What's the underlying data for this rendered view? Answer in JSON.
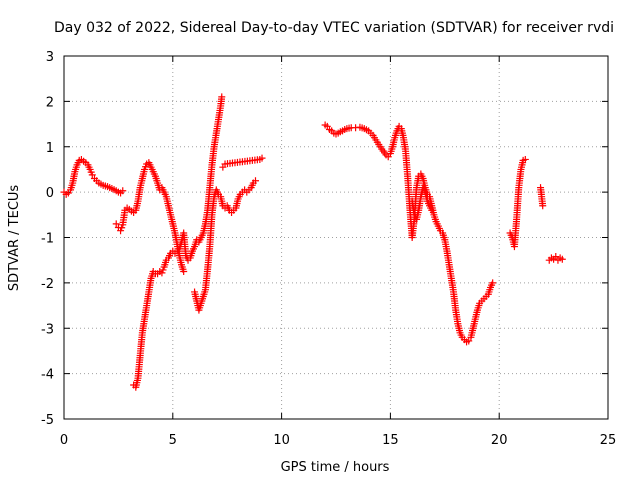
{
  "chart_data": {
    "type": "scatter",
    "title": "Day 032 of 2022, Sidereal Day-to-day VTEC variation (SDTVAR) for receiver rvdi",
    "xlabel": "GPS time / hours",
    "ylabel": "SDTVAR / TECUs",
    "xlim": [
      0,
      25
    ],
    "ylim": [
      -5,
      3
    ],
    "xticks": [
      "0",
      "5",
      "10",
      "15",
      "20",
      "25"
    ],
    "yticks": [
      "-5",
      "-4",
      "-3",
      "-2",
      "-1",
      "0",
      "1",
      "2",
      "3"
    ],
    "grid": true,
    "marker": "+",
    "color": "#ff0000",
    "series": [
      {
        "name": "SDTVAR",
        "segments": [
          [
            [
              0.0,
              0.0
            ],
            [
              0.1,
              -0.05
            ],
            [
              0.2,
              -0.02
            ],
            [
              0.3,
              0.05
            ],
            [
              0.4,
              0.2
            ],
            [
              0.5,
              0.45
            ],
            [
              0.6,
              0.6
            ],
            [
              0.7,
              0.7
            ],
            [
              0.8,
              0.72
            ],
            [
              0.9,
              0.68
            ],
            [
              1.0,
              0.65
            ],
            [
              1.1,
              0.6
            ],
            [
              1.2,
              0.5
            ],
            [
              1.3,
              0.38
            ],
            [
              1.4,
              0.3
            ],
            [
              1.5,
              0.25
            ],
            [
              1.6,
              0.2
            ],
            [
              1.8,
              0.15
            ],
            [
              2.0,
              0.12
            ],
            [
              2.2,
              0.08
            ],
            [
              2.4,
              0.03
            ],
            [
              2.5,
              0.0
            ],
            [
              2.6,
              -0.02
            ],
            [
              2.7,
              0.03
            ]
          ],
          [
            [
              2.4,
              -0.7
            ],
            [
              2.5,
              -0.78
            ],
            [
              2.6,
              -0.85
            ],
            [
              2.7,
              -0.72
            ],
            [
              2.8,
              -0.4
            ],
            [
              2.9,
              -0.35
            ],
            [
              3.0,
              -0.38
            ],
            [
              3.1,
              -0.42
            ],
            [
              3.2,
              -0.45
            ],
            [
              3.3,
              -0.4
            ],
            [
              3.4,
              -0.2
            ],
            [
              3.5,
              0.1
            ],
            [
              3.6,
              0.3
            ],
            [
              3.7,
              0.5
            ],
            [
              3.8,
              0.62
            ],
            [
              3.9,
              0.65
            ],
            [
              4.0,
              0.55
            ],
            [
              4.1,
              0.45
            ],
            [
              4.2,
              0.35
            ],
            [
              4.3,
              0.2
            ],
            [
              4.4,
              0.05
            ],
            [
              4.5,
              0.1
            ],
            [
              4.6,
              0.0
            ],
            [
              4.7,
              -0.1
            ],
            [
              4.8,
              -0.3
            ],
            [
              4.9,
              -0.5
            ],
            [
              5.0,
              -0.7
            ],
            [
              5.1,
              -0.9
            ],
            [
              5.2,
              -1.15
            ],
            [
              5.3,
              -1.4
            ],
            [
              5.4,
              -1.6
            ],
            [
              5.5,
              -1.75
            ]
          ],
          [
            [
              3.2,
              -4.25
            ],
            [
              3.3,
              -4.3
            ],
            [
              3.4,
              -4.1
            ],
            [
              3.5,
              -3.6
            ],
            [
              3.6,
              -3.1
            ],
            [
              3.7,
              -2.8
            ],
            [
              3.8,
              -2.5
            ],
            [
              3.9,
              -2.2
            ],
            [
              4.0,
              -1.9
            ],
            [
              4.1,
              -1.75
            ],
            [
              4.2,
              -1.8
            ],
            [
              4.3,
              -1.8
            ],
            [
              4.4,
              -1.75
            ],
            [
              4.5,
              -1.78
            ],
            [
              4.6,
              -1.65
            ],
            [
              4.7,
              -1.5
            ],
            [
              4.8,
              -1.45
            ],
            [
              4.9,
              -1.35
            ],
            [
              5.0,
              -1.3
            ],
            [
              5.1,
              -1.35
            ],
            [
              5.2,
              -1.3
            ],
            [
              5.3,
              -1.25
            ],
            [
              5.4,
              -1.1
            ],
            [
              5.5,
              -0.9
            ],
            [
              5.6,
              -1.4
            ],
            [
              5.7,
              -1.5
            ],
            [
              5.8,
              -1.45
            ],
            [
              5.9,
              -1.3
            ],
            [
              6.0,
              -1.2
            ],
            [
              6.1,
              -1.05
            ],
            [
              6.2,
              -1.1
            ],
            [
              6.3,
              -1.0
            ],
            [
              6.4,
              -0.9
            ],
            [
              6.5,
              -0.7
            ],
            [
              6.6,
              -0.4
            ],
            [
              6.7,
              0.1
            ],
            [
              6.8,
              0.6
            ],
            [
              6.9,
              1.0
            ],
            [
              7.0,
              1.3
            ],
            [
              7.1,
              1.6
            ],
            [
              7.2,
              1.9
            ],
            [
              7.25,
              2.1
            ]
          ],
          [
            [
              6.0,
              -2.2
            ],
            [
              6.1,
              -2.4
            ],
            [
              6.2,
              -2.6
            ],
            [
              6.3,
              -2.45
            ],
            [
              6.4,
              -2.3
            ],
            [
              6.5,
              -2.15
            ],
            [
              6.6,
              -1.7
            ],
            [
              6.7,
              -1.2
            ],
            [
              6.8,
              -0.5
            ],
            [
              6.9,
              -0.1
            ],
            [
              7.0,
              0.05
            ],
            [
              7.1,
              -0.05
            ],
            [
              7.2,
              -0.1
            ],
            [
              7.3,
              -0.3
            ],
            [
              7.4,
              -0.35
            ],
            [
              7.5,
              -0.3
            ],
            [
              7.6,
              -0.4
            ],
            [
              7.7,
              -0.45
            ],
            [
              7.8,
              -0.4
            ],
            [
              7.9,
              -0.35
            ],
            [
              8.0,
              -0.15
            ],
            [
              8.1,
              -0.05
            ],
            [
              8.2,
              0.0
            ],
            [
              8.3,
              0.05
            ],
            [
              8.4,
              0.0
            ],
            [
              8.5,
              0.05
            ],
            [
              8.6,
              0.1
            ],
            [
              8.7,
              0.2
            ],
            [
              8.8,
              0.25
            ]
          ],
          [
            [
              7.3,
              0.55
            ],
            [
              7.4,
              0.62
            ],
            [
              9.0,
              0.72
            ],
            [
              9.1,
              0.75
            ]
          ],
          [
            [
              12.0,
              1.48
            ],
            [
              12.1,
              1.45
            ],
            [
              12.2,
              1.38
            ],
            [
              12.3,
              1.35
            ],
            [
              12.4,
              1.3
            ],
            [
              12.5,
              1.28
            ],
            [
              12.6,
              1.3
            ],
            [
              12.7,
              1.33
            ],
            [
              12.8,
              1.35
            ],
            [
              12.9,
              1.38
            ],
            [
              13.0,
              1.4
            ],
            [
              13.2,
              1.42
            ],
            [
              13.4,
              1.42
            ],
            [
              13.6,
              1.43
            ],
            [
              13.8,
              1.4
            ],
            [
              14.0,
              1.35
            ],
            [
              14.2,
              1.25
            ],
            [
              14.4,
              1.1
            ],
            [
              14.6,
              0.95
            ],
            [
              14.8,
              0.82
            ],
            [
              14.9,
              0.78
            ],
            [
              15.0,
              0.85
            ],
            [
              15.1,
              1.0
            ],
            [
              15.2,
              1.2
            ],
            [
              15.3,
              1.35
            ],
            [
              15.4,
              1.45
            ],
            [
              15.5,
              1.4
            ],
            [
              15.6,
              1.2
            ],
            [
              15.7,
              0.9
            ],
            [
              15.8,
              0.3
            ],
            [
              15.9,
              -0.4
            ],
            [
              16.0,
              -1.0
            ],
            [
              16.1,
              -0.6
            ],
            [
              16.2,
              0.1
            ],
            [
              16.3,
              0.35
            ],
            [
              16.4,
              0.4
            ],
            [
              16.5,
              0.3
            ],
            [
              16.6,
              0.1
            ],
            [
              16.7,
              -0.05
            ],
            [
              16.8,
              -0.1
            ],
            [
              16.9,
              -0.3
            ],
            [
              17.0,
              -0.5
            ],
            [
              17.1,
              -0.65
            ],
            [
              17.2,
              -0.75
            ],
            [
              17.3,
              -0.85
            ],
            [
              17.4,
              -0.9
            ],
            [
              17.5,
              -1.05
            ],
            [
              17.6,
              -1.3
            ],
            [
              17.7,
              -1.6
            ],
            [
              17.8,
              -1.9
            ],
            [
              17.9,
              -2.2
            ],
            [
              18.0,
              -2.6
            ],
            [
              18.1,
              -2.9
            ],
            [
              18.2,
              -3.1
            ],
            [
              18.3,
              -3.2
            ],
            [
              18.4,
              -3.25
            ],
            [
              18.5,
              -3.3
            ],
            [
              18.6,
              -3.28
            ],
            [
              18.7,
              -3.2
            ],
            [
              18.8,
              -3.0
            ],
            [
              18.9,
              -2.8
            ],
            [
              19.0,
              -2.6
            ],
            [
              19.1,
              -2.45
            ],
            [
              19.2,
              -2.4
            ],
            [
              19.3,
              -2.35
            ],
            [
              19.4,
              -2.3
            ],
            [
              19.5,
              -2.25
            ],
            [
              19.6,
              -2.1
            ],
            [
              19.7,
              -2.0
            ]
          ],
          [
            [
              16.0,
              -0.2
            ],
            [
              16.1,
              -0.5
            ],
            [
              16.2,
              -0.6
            ],
            [
              16.3,
              -0.4
            ],
            [
              16.4,
              -0.1
            ],
            [
              16.5,
              0.1
            ],
            [
              16.6,
              0.0
            ],
            [
              16.7,
              -0.2
            ],
            [
              16.8,
              -0.3
            ],
            [
              16.9,
              -0.4
            ]
          ],
          [
            [
              20.5,
              -0.9
            ],
            [
              20.6,
              -1.0
            ],
            [
              20.7,
              -1.2
            ],
            [
              20.8,
              -0.6
            ],
            [
              20.9,
              0.1
            ],
            [
              21.0,
              0.5
            ],
            [
              21.1,
              0.7
            ],
            [
              21.2,
              0.72
            ]
          ],
          [
            [
              21.9,
              0.1
            ],
            [
              22.0,
              -0.3
            ]
          ],
          [
            [
              22.3,
              -1.5
            ],
            [
              22.4,
              -1.45
            ],
            [
              22.5,
              -1.48
            ],
            [
              22.6,
              -1.42
            ],
            [
              22.7,
              -1.5
            ],
            [
              22.8,
              -1.45
            ],
            [
              22.9,
              -1.48
            ]
          ]
        ]
      }
    ]
  }
}
